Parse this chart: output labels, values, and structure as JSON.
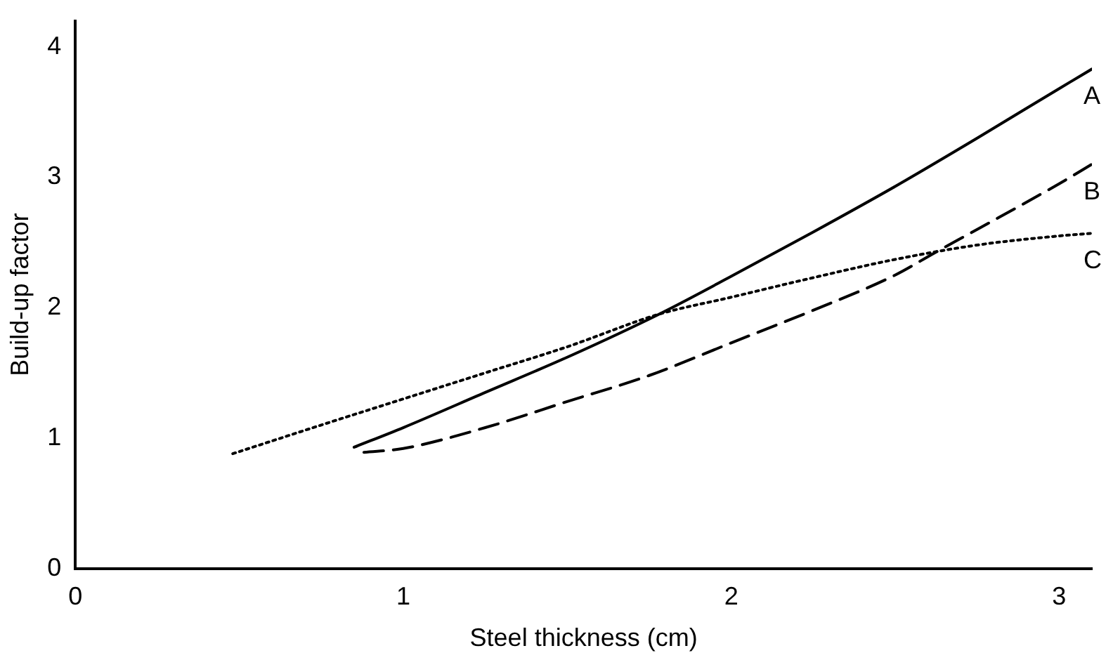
{
  "chart_data": {
    "type": "line",
    "xlabel": "Steel thickness (cm)",
    "ylabel": "Build-up factor",
    "xlim": [
      0,
      3.1
    ],
    "xticks": [
      0,
      1,
      2,
      3
    ],
    "ylim": [
      0,
      4.2
    ],
    "yticks": [
      0,
      1,
      2,
      3,
      4
    ],
    "grid": false,
    "legend": false,
    "marker": "none",
    "series": [
      {
        "name": "A",
        "color": "#000000",
        "line_style": "solid",
        "x": [
          0.85,
          1,
          1.25,
          1.5,
          1.78,
          2,
          2.25,
          2.5,
          2.75,
          3,
          3.1
        ],
        "values": [
          0.93,
          1.08,
          1.35,
          1.62,
          1.95,
          2.24,
          2.58,
          2.93,
          3.3,
          3.68,
          3.83
        ]
      },
      {
        "name": "B",
        "color": "#000000",
        "line_style": "dashed",
        "x": [
          0.88,
          1,
          1.25,
          1.5,
          1.75,
          2,
          2.25,
          2.5,
          2.62,
          2.75,
          3,
          3.1
        ],
        "values": [
          0.89,
          0.92,
          1.08,
          1.28,
          1.48,
          1.73,
          1.98,
          2.25,
          2.42,
          2.6,
          2.95,
          3.1
        ]
      },
      {
        "name": "C",
        "color": "#000000",
        "line_style": "dotted",
        "x": [
          0.48,
          0.75,
          1,
          1.25,
          1.5,
          1.78,
          2,
          2.25,
          2.5,
          2.75,
          3,
          3.1
        ],
        "values": [
          0.88,
          1.1,
          1.3,
          1.5,
          1.7,
          1.95,
          2.08,
          2.23,
          2.37,
          2.48,
          2.55,
          2.57
        ]
      }
    ]
  }
}
